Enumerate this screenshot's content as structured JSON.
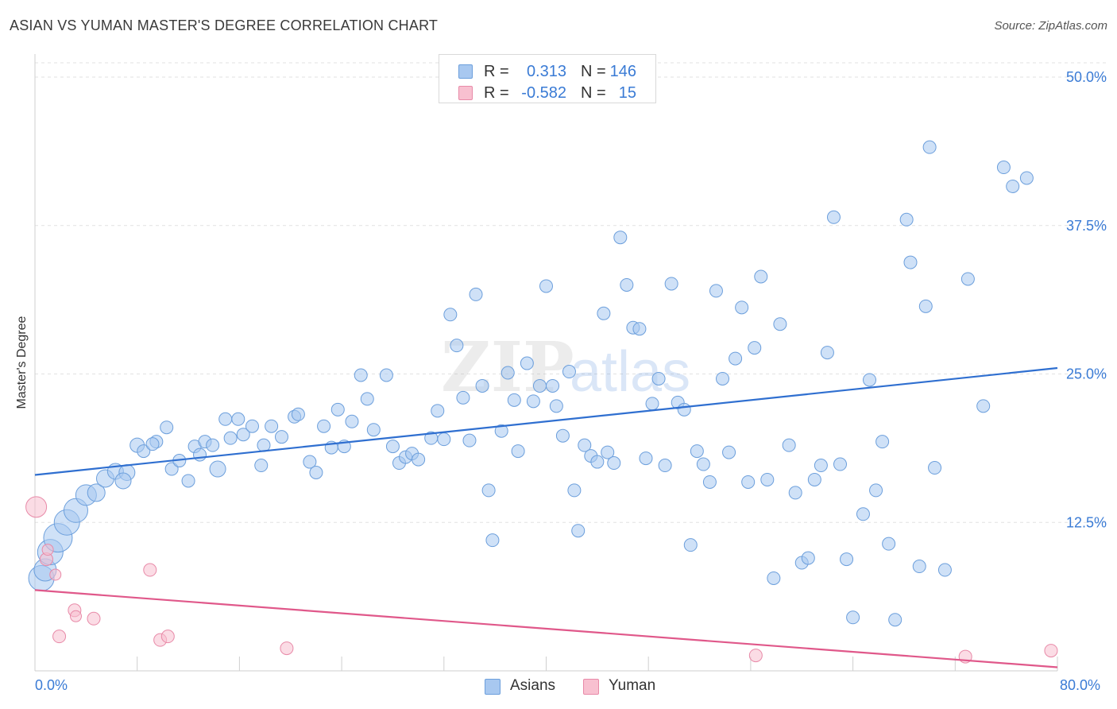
{
  "title": "ASIAN VS YUMAN MASTER'S DEGREE CORRELATION CHART",
  "source": "Source: ZipAtlas.com",
  "watermark": {
    "zip": "ZIP",
    "atlas": "atlas"
  },
  "legend_top": {
    "rows": [
      {
        "r_label": "R =",
        "r_value": "0.313",
        "n_label": "N =",
        "n_value": "146",
        "color": "#a8c8f0",
        "border": "#6c9fdc"
      },
      {
        "r_label": "R =",
        "r_value": "-0.582",
        "n_label": "N =",
        "n_value": "15",
        "color": "#f8c0d0",
        "border": "#e88aa8"
      }
    ]
  },
  "legend_bottom": {
    "items": [
      {
        "label": "Asians",
        "color": "#a8c8f0",
        "border": "#6c9fdc"
      },
      {
        "label": "Yuman",
        "color": "#f8c0d0",
        "border": "#e88aa8"
      }
    ]
  },
  "chart_data": {
    "type": "scatter",
    "title": "ASIAN VS YUMAN MASTER'S DEGREE CORRELATION CHART",
    "xlabel": "",
    "ylabel": "Master's Degree",
    "xlim": [
      0,
      80
    ],
    "ylim": [
      0,
      50
    ],
    "x_tick_labels": [
      "0.0%",
      "80.0%"
    ],
    "y_ticks": [
      12.5,
      25.0,
      37.5,
      50.0
    ],
    "y_tick_labels": [
      "12.5%",
      "25.0%",
      "37.5%",
      "50.0%"
    ],
    "grid": "horizontal dashed",
    "legend_position": "top-center and bottom-center",
    "series": [
      {
        "name": "Asians",
        "color": "#6c9fdc",
        "fill": "#a8c8f0",
        "trend": {
          "x": [
            0,
            80
          ],
          "y": [
            16.5,
            25.5
          ],
          "color": "#2f6fd0"
        },
        "points": [
          [
            0.5,
            7.8,
            16
          ],
          [
            0.8,
            8.5,
            14
          ],
          [
            1.2,
            10,
            16
          ],
          [
            1.8,
            11.2,
            18
          ],
          [
            2.5,
            12.5,
            16
          ],
          [
            3.2,
            13.5,
            15
          ],
          [
            4.0,
            14.8,
            13
          ],
          [
            4.8,
            15,
            11
          ],
          [
            5.5,
            16.2,
            11
          ],
          [
            6.3,
            16.8,
            10
          ],
          [
            7.2,
            16.7,
            10
          ],
          [
            6.9,
            16,
            10
          ],
          [
            8.0,
            19,
            9
          ],
          [
            8.5,
            18.5,
            8
          ],
          [
            9.5,
            19.3,
            8
          ],
          [
            9.2,
            19.1,
            8
          ],
          [
            10.3,
            20.5,
            8
          ],
          [
            10.7,
            17,
            8
          ],
          [
            11.3,
            17.7,
            8
          ],
          [
            12.0,
            16,
            8
          ],
          [
            12.5,
            18.9,
            8
          ],
          [
            12.9,
            18.2,
            8
          ],
          [
            13.3,
            19.3,
            8
          ],
          [
            13.9,
            19,
            8
          ],
          [
            14.3,
            17,
            10
          ],
          [
            14.9,
            21.2,
            8
          ],
          [
            15.3,
            19.6,
            8
          ],
          [
            15.9,
            21.2,
            8
          ],
          [
            16.3,
            19.9,
            8
          ],
          [
            17.0,
            20.6,
            8
          ],
          [
            17.7,
            17.3,
            8
          ],
          [
            17.9,
            19,
            8
          ],
          [
            18.5,
            20.6,
            8
          ],
          [
            19.3,
            19.7,
            8
          ],
          [
            20.3,
            21.4,
            8
          ],
          [
            20.6,
            21.6,
            8
          ],
          [
            21.5,
            17.6,
            8
          ],
          [
            22.0,
            16.7,
            8
          ],
          [
            22.6,
            20.6,
            8
          ],
          [
            23.2,
            18.8,
            8
          ],
          [
            23.7,
            22.0,
            8
          ],
          [
            24.2,
            18.9,
            8
          ],
          [
            24.8,
            21.0,
            8
          ],
          [
            25.5,
            24.9,
            8
          ],
          [
            26.0,
            22.9,
            8
          ],
          [
            26.5,
            20.3,
            8
          ],
          [
            27.5,
            24.9,
            8
          ],
          [
            28.0,
            18.9,
            8
          ],
          [
            28.5,
            17.5,
            8
          ],
          [
            29.0,
            18.0,
            8
          ],
          [
            29.5,
            18.3,
            8
          ],
          [
            30.0,
            17.8,
            8
          ],
          [
            31.0,
            19.6,
            8
          ],
          [
            31.5,
            21.9,
            8
          ],
          [
            32.0,
            19.5,
            8
          ],
          [
            32.5,
            30,
            8
          ],
          [
            33.0,
            27.4,
            8
          ],
          [
            33.5,
            23.0,
            8
          ],
          [
            34.0,
            19.4,
            8
          ],
          [
            34.5,
            31.7,
            8
          ],
          [
            35.0,
            24.0,
            8
          ],
          [
            35.5,
            15.2,
            8
          ],
          [
            35.8,
            11.0,
            8
          ],
          [
            36.5,
            20.2,
            8
          ],
          [
            37.0,
            25.1,
            8
          ],
          [
            37.5,
            22.8,
            8
          ],
          [
            37.8,
            18.5,
            8
          ],
          [
            38.5,
            25.9,
            8
          ],
          [
            39.0,
            22.7,
            8
          ],
          [
            39.5,
            24.0,
            8
          ],
          [
            40.0,
            32.4,
            8
          ],
          [
            40.5,
            24.0,
            8
          ],
          [
            40.8,
            22.3,
            8
          ],
          [
            41.3,
            19.8,
            8
          ],
          [
            41.8,
            25.2,
            8
          ],
          [
            42.2,
            15.2,
            8
          ],
          [
            42.5,
            11.8,
            8
          ],
          [
            43.0,
            19.0,
            8
          ],
          [
            43.5,
            18.1,
            8
          ],
          [
            44.0,
            17.6,
            8
          ],
          [
            44.5,
            30.1,
            8
          ],
          [
            44.8,
            18.4,
            8
          ],
          [
            45.3,
            17.5,
            8
          ],
          [
            45.8,
            36.5,
            8
          ],
          [
            46.3,
            32.5,
            8
          ],
          [
            46.8,
            28.9,
            8
          ],
          [
            47.3,
            28.8,
            8
          ],
          [
            47.8,
            17.9,
            8
          ],
          [
            48.3,
            22.5,
            8
          ],
          [
            48.8,
            24.6,
            8
          ],
          [
            49.3,
            17.3,
            8
          ],
          [
            49.8,
            32.6,
            8
          ],
          [
            50.3,
            22.6,
            8
          ],
          [
            50.8,
            22.0,
            8
          ],
          [
            51.3,
            10.6,
            8
          ],
          [
            51.8,
            18.5,
            8
          ],
          [
            52.3,
            17.4,
            8
          ],
          [
            52.8,
            15.9,
            8
          ],
          [
            53.3,
            32.0,
            8
          ],
          [
            53.8,
            24.6,
            8
          ],
          [
            54.3,
            18.4,
            8
          ],
          [
            54.8,
            26.3,
            8
          ],
          [
            55.3,
            30.6,
            8
          ],
          [
            55.8,
            15.9,
            8
          ],
          [
            56.3,
            27.2,
            8
          ],
          [
            56.8,
            33.2,
            8
          ],
          [
            57.3,
            16.1,
            8
          ],
          [
            57.8,
            7.8,
            8
          ],
          [
            58.3,
            29.2,
            8
          ],
          [
            59.0,
            19.0,
            8
          ],
          [
            59.5,
            15.0,
            8
          ],
          [
            60.0,
            9.1,
            8
          ],
          [
            60.5,
            9.5,
            8
          ],
          [
            61.0,
            16.1,
            8
          ],
          [
            61.5,
            17.3,
            8
          ],
          [
            62.0,
            26.8,
            8
          ],
          [
            62.5,
            38.2,
            8
          ],
          [
            63.0,
            17.4,
            8
          ],
          [
            63.5,
            9.4,
            8
          ],
          [
            64.0,
            4.5,
            8
          ],
          [
            64.8,
            13.2,
            8
          ],
          [
            65.3,
            24.5,
            8
          ],
          [
            65.8,
            15.2,
            8
          ],
          [
            66.3,
            19.3,
            8
          ],
          [
            66.8,
            10.7,
            8
          ],
          [
            67.3,
            4.3,
            8
          ],
          [
            68.2,
            38.0,
            8
          ],
          [
            68.5,
            34.4,
            8
          ],
          [
            69.2,
            8.8,
            8
          ],
          [
            69.7,
            30.7,
            8
          ],
          [
            70.4,
            17.1,
            8
          ],
          [
            71.2,
            8.5,
            8
          ],
          [
            73.0,
            33.0,
            8
          ],
          [
            74.2,
            22.3,
            8
          ],
          [
            75.8,
            42.4,
            8
          ],
          [
            76.5,
            40.8,
            8
          ],
          [
            77.6,
            41.5,
            8
          ],
          [
            70.0,
            44.1,
            8
          ]
        ]
      },
      {
        "name": "Yuman",
        "color": "#e88aa8",
        "fill": "#f8c0d0",
        "trend": {
          "x": [
            0,
            80
          ],
          "y": [
            6.8,
            0.3
          ],
          "color": "#e0588a"
        },
        "points": [
          [
            0.1,
            13.8,
            13
          ],
          [
            0.9,
            9.4,
            8
          ],
          [
            1.0,
            10.2,
            7
          ],
          [
            1.6,
            8.1,
            7
          ],
          [
            1.9,
            2.9,
            8
          ],
          [
            3.1,
            5.1,
            8
          ],
          [
            3.2,
            4.6,
            7
          ],
          [
            4.6,
            4.4,
            8
          ],
          [
            9.0,
            8.5,
            8
          ],
          [
            9.8,
            2.6,
            8
          ],
          [
            10.4,
            2.9,
            8
          ],
          [
            19.7,
            1.9,
            8
          ],
          [
            56.4,
            1.3,
            8
          ],
          [
            72.8,
            1.2,
            8
          ],
          [
            79.5,
            1.7,
            8
          ]
        ]
      }
    ]
  }
}
